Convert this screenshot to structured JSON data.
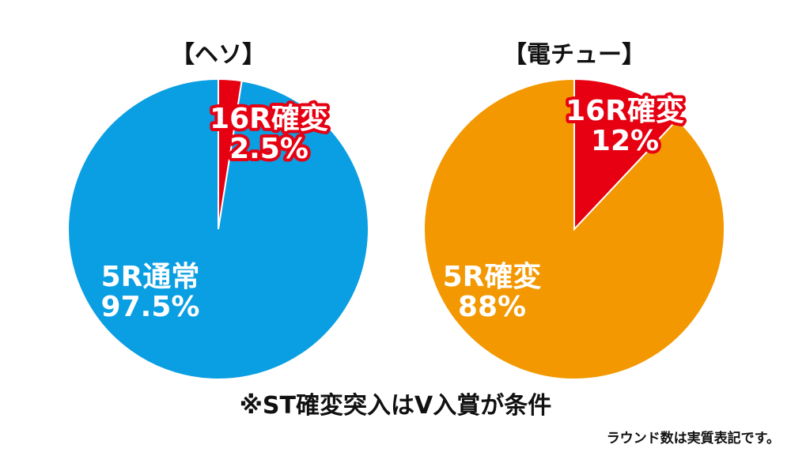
{
  "colors": {
    "red": "#e60012",
    "blue": "#0a9ee2",
    "orange": "#f39800",
    "white": "#ffffff"
  },
  "chart_data": [
    {
      "type": "pie",
      "title": "【ヘソ】",
      "slices": [
        {
          "label": "16R確変",
          "value_label": "2.5%",
          "value": 2.5,
          "color": "#e60012"
        },
        {
          "label": "5R通常",
          "value_label": "97.5%",
          "value": 97.5,
          "color": "#0a9ee2"
        }
      ]
    },
    {
      "type": "pie",
      "title": "【電チュー】",
      "slices": [
        {
          "label": "16R確変",
          "value_label": "12%",
          "value": 12,
          "color": "#e60012"
        },
        {
          "label": "5R確変",
          "value_label": "88%",
          "value": 88,
          "color": "#f39800"
        }
      ]
    }
  ],
  "footnote": "※ST確変突入はV入賞が条件",
  "note": "ラウンド数は実質表記です。"
}
